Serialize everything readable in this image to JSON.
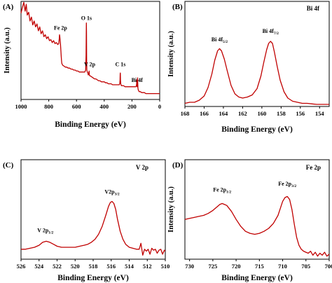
{
  "chart_data": [
    {
      "type": "line",
      "panel_tag": "(A)",
      "corner_label": "",
      "xlabel": "Binding Energy (eV)",
      "ylabel": "Intensity (a.u.)",
      "xlim": [
        1000,
        0
      ],
      "ylim": [
        0,
        1
      ],
      "x_ticks": [
        "1000",
        "800",
        "600",
        "400",
        "200",
        "0"
      ],
      "line_color": "#c00000",
      "annotations": [
        {
          "text": "Fe 2p",
          "sub": "",
          "x": 715,
          "y": 0.71
        },
        {
          "text": "O 1s",
          "sub": "",
          "x": 528,
          "y": 0.81
        },
        {
          "text": "V 2p",
          "sub": "",
          "x": 505,
          "y": 0.34
        },
        {
          "text": "C 1s",
          "sub": "",
          "x": 283,
          "y": 0.34
        },
        {
          "text": "Bi 4f",
          "sub": "",
          "x": 163,
          "y": 0.18
        }
      ],
      "series": [
        {
          "x": [
            1000,
            990,
            980,
            970,
            962,
            955,
            945,
            935,
            925,
            915,
            905,
            895,
            885,
            875,
            865,
            855,
            845,
            835,
            825,
            815,
            805,
            795,
            785,
            775,
            765,
            755,
            745,
            735,
            728,
            724,
            722,
            720,
            716,
            712,
            710,
            708,
            706,
            700,
            690,
            680,
            670,
            660,
            650,
            640,
            630,
            620,
            610,
            600,
            590,
            580,
            570,
            560,
            550,
            540,
            534,
            531,
            530,
            529,
            528,
            527,
            525,
            522,
            518,
            515,
            513,
            511,
            509,
            507,
            504,
            500,
            490,
            480,
            470,
            460,
            450,
            440,
            430,
            420,
            410,
            400,
            390,
            380,
            370,
            360,
            350,
            340,
            330,
            320,
            310,
            300,
            292,
            288,
            286,
            285,
            284,
            283,
            281,
            279,
            275,
            268,
            260,
            250,
            240,
            230,
            220,
            210,
            200,
            190,
            180,
            172,
            168,
            166,
            165,
            164,
            163,
            162,
            160,
            159,
            158,
            157,
            155,
            152,
            148,
            140,
            130,
            120,
            110,
            100,
            90,
            80,
            70,
            60,
            50,
            40,
            30,
            20,
            10,
            0
          ],
          "y": [
            0.88,
            0.94,
            0.99,
            0.9,
            0.97,
            0.86,
            0.89,
            0.8,
            0.84,
            0.76,
            0.8,
            0.74,
            0.77,
            0.7,
            0.74,
            0.67,
            0.7,
            0.64,
            0.66,
            0.62,
            0.64,
            0.6,
            0.61,
            0.58,
            0.6,
            0.57,
            0.58,
            0.56,
            0.57,
            0.62,
            0.66,
            0.64,
            0.58,
            0.49,
            0.44,
            0.4,
            0.37,
            0.35,
            0.34,
            0.33,
            0.33,
            0.32,
            0.32,
            0.31,
            0.31,
            0.3,
            0.3,
            0.29,
            0.29,
            0.28,
            0.28,
            0.28,
            0.28,
            0.28,
            0.3,
            0.45,
            0.62,
            0.78,
            0.69,
            0.4,
            0.3,
            0.28,
            0.27,
            0.25,
            0.27,
            0.26,
            0.29,
            0.25,
            0.24,
            0.24,
            0.23,
            0.22,
            0.21,
            0.21,
            0.2,
            0.19,
            0.19,
            0.18,
            0.18,
            0.18,
            0.17,
            0.17,
            0.16,
            0.16,
            0.16,
            0.15,
            0.15,
            0.15,
            0.15,
            0.15,
            0.15,
            0.16,
            0.2,
            0.26,
            0.27,
            0.2,
            0.16,
            0.15,
            0.14,
            0.14,
            0.14,
            0.13,
            0.13,
            0.13,
            0.13,
            0.13,
            0.13,
            0.13,
            0.13,
            0.13,
            0.14,
            0.16,
            0.2,
            0.17,
            0.13,
            0.14,
            0.18,
            0.22,
            0.16,
            0.12,
            0.1,
            0.09,
            0.08,
            0.08,
            0.07,
            0.07,
            0.07,
            0.06,
            0.06,
            0.06,
            0.06,
            0.06,
            0.06,
            0.06,
            0.06,
            0.06,
            0.06,
            0.06
          ]
        }
      ]
    },
    {
      "type": "line",
      "panel_tag": "(B)",
      "corner_label": "Bi 4f",
      "xlabel": "Binding Energy (eV)",
      "ylabel": "Intensity (a.u.)",
      "xlim": [
        168,
        153
      ],
      "ylim": [
        0,
        1
      ],
      "x_ticks": [
        "168",
        "166",
        "164",
        "162",
        "160",
        "158",
        "156",
        "154"
      ],
      "line_color": "#c00000",
      "annotations": [
        {
          "text": "Bi 4f",
          "sub": "5/2",
          "x": 164.4,
          "y": 0.62
        },
        {
          "text": "Bi 4f",
          "sub": "7/2",
          "x": 159.1,
          "y": 0.7
        }
      ],
      "series": [
        {
          "x": [
            168,
            167.5,
            167,
            166.5,
            166,
            165.6,
            165.2,
            164.9,
            164.6,
            164.4,
            164.2,
            163.9,
            163.6,
            163.2,
            162.8,
            162.4,
            162,
            161.5,
            161,
            160.5,
            160.1,
            159.8,
            159.5,
            159.3,
            159.1,
            158.9,
            158.7,
            158.4,
            158.1,
            157.7,
            157.3,
            156.8,
            156.3,
            155.8,
            155.3,
            154.8,
            154.3,
            153.8,
            153.4,
            153
          ],
          "y": [
            0.03,
            0.04,
            0.04,
            0.06,
            0.1,
            0.18,
            0.31,
            0.44,
            0.53,
            0.55,
            0.53,
            0.45,
            0.34,
            0.2,
            0.12,
            0.09,
            0.08,
            0.09,
            0.11,
            0.17,
            0.29,
            0.42,
            0.54,
            0.6,
            0.62,
            0.6,
            0.52,
            0.38,
            0.25,
            0.14,
            0.08,
            0.05,
            0.04,
            0.03,
            0.03,
            0.025,
            0.02,
            0.02,
            0.02,
            0.02
          ]
        }
      ]
    },
    {
      "type": "line",
      "panel_tag": "(C)",
      "corner_label": "V 2p",
      "xlabel": "Binding Energy (eV)",
      "ylabel": "",
      "xlim": [
        526,
        510
      ],
      "ylim": [
        0,
        1
      ],
      "x_ticks": [
        "526",
        "524",
        "522",
        "520",
        "518",
        "516",
        "514",
        "512",
        "510"
      ],
      "line_color": "#c00000",
      "annotations": [
        {
          "text": "V 2p",
          "sub": "1/2",
          "x": 523.3,
          "y": 0.27
        },
        {
          "text": "V2p",
          "sub": "3/2",
          "x": 515.9,
          "y": 0.66
        }
      ],
      "series": [
        {
          "x": [
            526,
            525.5,
            525,
            524.5,
            524,
            523.6,
            523.2,
            522.8,
            522.4,
            522,
            521.5,
            521,
            520.5,
            520,
            519.5,
            519,
            518.6,
            518.2,
            517.8,
            517.4,
            517,
            516.6,
            516.3,
            516.1,
            515.9,
            515.7,
            515.5,
            515.3,
            515,
            514.7,
            514.4,
            514,
            513.6,
            513.2,
            512.9,
            512.7,
            512.5,
            512.3,
            512.1,
            511.9,
            511.7,
            511.5,
            511.3,
            511.1,
            510.9,
            510.7,
            510.5,
            510.3,
            510.1,
            510
          ],
          "y": [
            0.1,
            0.1,
            0.11,
            0.12,
            0.14,
            0.17,
            0.18,
            0.17,
            0.15,
            0.13,
            0.12,
            0.12,
            0.12,
            0.12,
            0.13,
            0.14,
            0.15,
            0.17,
            0.2,
            0.25,
            0.33,
            0.44,
            0.53,
            0.57,
            0.58,
            0.56,
            0.5,
            0.4,
            0.28,
            0.2,
            0.15,
            0.12,
            0.11,
            0.1,
            0.1,
            0.16,
            0.04,
            0.1,
            0.08,
            0.1,
            0.05,
            0.11,
            0.09,
            0.1,
            0.06,
            0.09,
            0.1,
            0.05,
            0.09,
            0.08
          ]
        }
      ]
    },
    {
      "type": "line",
      "panel_tag": "(D)",
      "corner_label": "Fe 2p",
      "xlabel": "Binding Energy (eV)",
      "ylabel": "Intensity (a.u.)",
      "xlim": [
        731,
        700
      ],
      "ylim": [
        0,
        1
      ],
      "x_ticks": [
        "730",
        "725",
        "720",
        "715",
        "710",
        "705",
        "700"
      ],
      "line_color": "#c00000",
      "annotations": [
        {
          "text": "Fe 2p",
          "sub": "1/2",
          "x": 723,
          "y": 0.68
        },
        {
          "text": "Fe 2p",
          "sub": "3/2",
          "x": 709,
          "y": 0.74
        }
      ],
      "series": [
        {
          "x": [
            731,
            730,
            729,
            728,
            727,
            726,
            725,
            724,
            723.5,
            723,
            722.5,
            722,
            721,
            720,
            719,
            718,
            717,
            716,
            715,
            714,
            713,
            712,
            711,
            710.5,
            710,
            709.5,
            709,
            708.5,
            708,
            707.5,
            707,
            706.5,
            706,
            705.5,
            705,
            704.5,
            704,
            703.5,
            703,
            702.5,
            702,
            701.5,
            701,
            700.5,
            700
          ],
          "y": [
            0.4,
            0.41,
            0.42,
            0.43,
            0.44,
            0.46,
            0.49,
            0.53,
            0.55,
            0.56,
            0.55,
            0.54,
            0.48,
            0.4,
            0.33,
            0.28,
            0.26,
            0.25,
            0.26,
            0.28,
            0.31,
            0.36,
            0.44,
            0.51,
            0.58,
            0.62,
            0.63,
            0.6,
            0.5,
            0.35,
            0.22,
            0.14,
            0.1,
            0.08,
            0.07,
            0.06,
            0.08,
            0.04,
            0.07,
            0.03,
            0.06,
            0.04,
            0.07,
            0.03,
            0.05
          ]
        }
      ]
    }
  ]
}
